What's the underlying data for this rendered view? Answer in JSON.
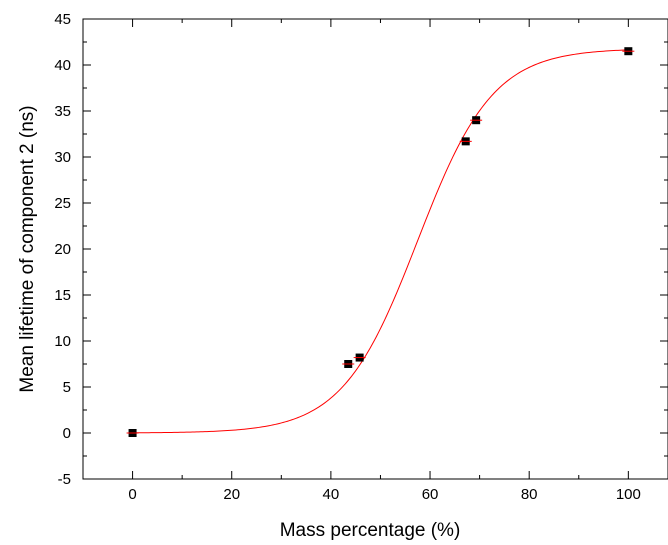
{
  "chart_data": {
    "type": "scatter",
    "xlabel": "Mass percentage (%)",
    "ylabel": "Mean lifetime of component 2 (ns)",
    "xlim": [
      -10,
      108
    ],
    "ylim": [
      -5,
      45
    ],
    "xticks": [
      0,
      20,
      40,
      60,
      80,
      100
    ],
    "yticks": [
      -5,
      0,
      5,
      10,
      15,
      20,
      25,
      30,
      35,
      40,
      45
    ],
    "grid": false,
    "series": [
      {
        "kind": "points",
        "marker": "square",
        "marker_color": "#000000",
        "error_color": "#ff0000",
        "x": [
          0,
          43.5,
          45.8,
          67.2,
          69.3,
          100
        ],
        "y": [
          0.0,
          7.5,
          8.2,
          31.7,
          34.0,
          41.5
        ]
      },
      {
        "kind": "fit",
        "model": "sigmoid",
        "color": "#ff0000",
        "bottom": 0.0,
        "top": 41.8,
        "x50": 57.5,
        "slope": 7.6,
        "x_range": [
          0,
          100
        ]
      }
    ]
  }
}
